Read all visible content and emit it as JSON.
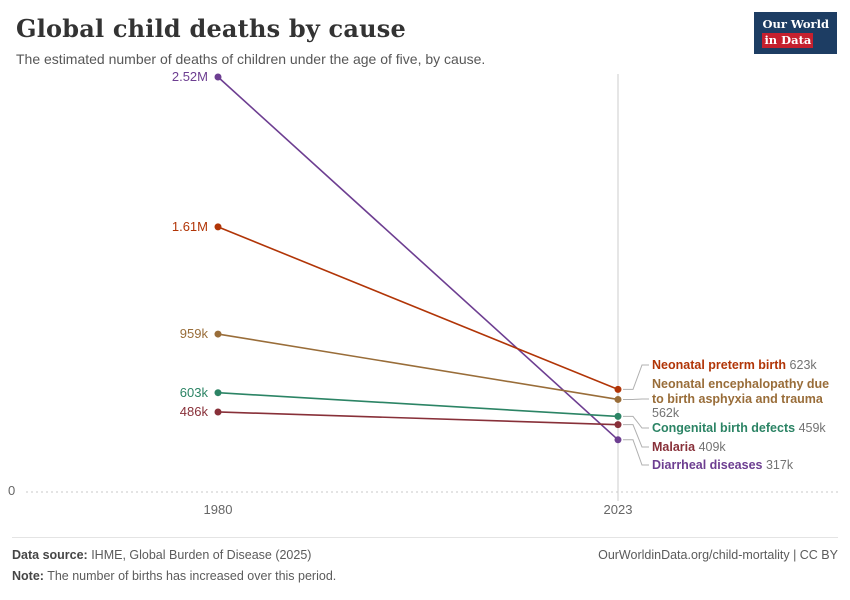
{
  "header": {
    "title": "Global child deaths by cause",
    "subtitle": "The estimated number of deaths of children under the age of five, by cause.",
    "logo": {
      "line1": "Our World",
      "line2": "in Data",
      "bg_color": "#1D3D63",
      "accent_color": "#C5202E"
    }
  },
  "chart_data": {
    "type": "line",
    "title": "Global child deaths by cause",
    "x": [
      1980,
      2023
    ],
    "x_ticks": [
      "1980",
      "2023"
    ],
    "ylim": [
      0,
      2520000
    ],
    "zero_label": "0",
    "grid": "zero-line-only",
    "legend_position": "right",
    "series": [
      {
        "name": "Diarrheal diseases",
        "color": "#6D3E91",
        "values": [
          2520000,
          317000
        ],
        "start_label": "2.52M",
        "end_label": "317k"
      },
      {
        "name": "Neonatal preterm birth",
        "color": "#B13507",
        "values": [
          1610000,
          623000
        ],
        "start_label": "1.61M",
        "end_label": "623k"
      },
      {
        "name": "Neonatal encephalopathy due to birth asphyxia and trauma",
        "color": "#996D39",
        "values": [
          959000,
          562000
        ],
        "start_label": "959k",
        "end_label": "562k"
      },
      {
        "name": "Congenital birth defects",
        "color": "#2C8465",
        "values": [
          603000,
          459000
        ],
        "start_label": "603k",
        "end_label": "459k"
      },
      {
        "name": "Malaria",
        "color": "#883039",
        "values": [
          486000,
          409000
        ],
        "start_label": "486k",
        "end_label": "409k"
      }
    ]
  },
  "footer": {
    "source_label": "Data source:",
    "source_text": " IHME, Global Burden of Disease (2025)",
    "note_label": "Note:",
    "note_text": " The number of births has increased over this period.",
    "link_text": "OurWorldinData.org/child-mortality | CC BY"
  }
}
